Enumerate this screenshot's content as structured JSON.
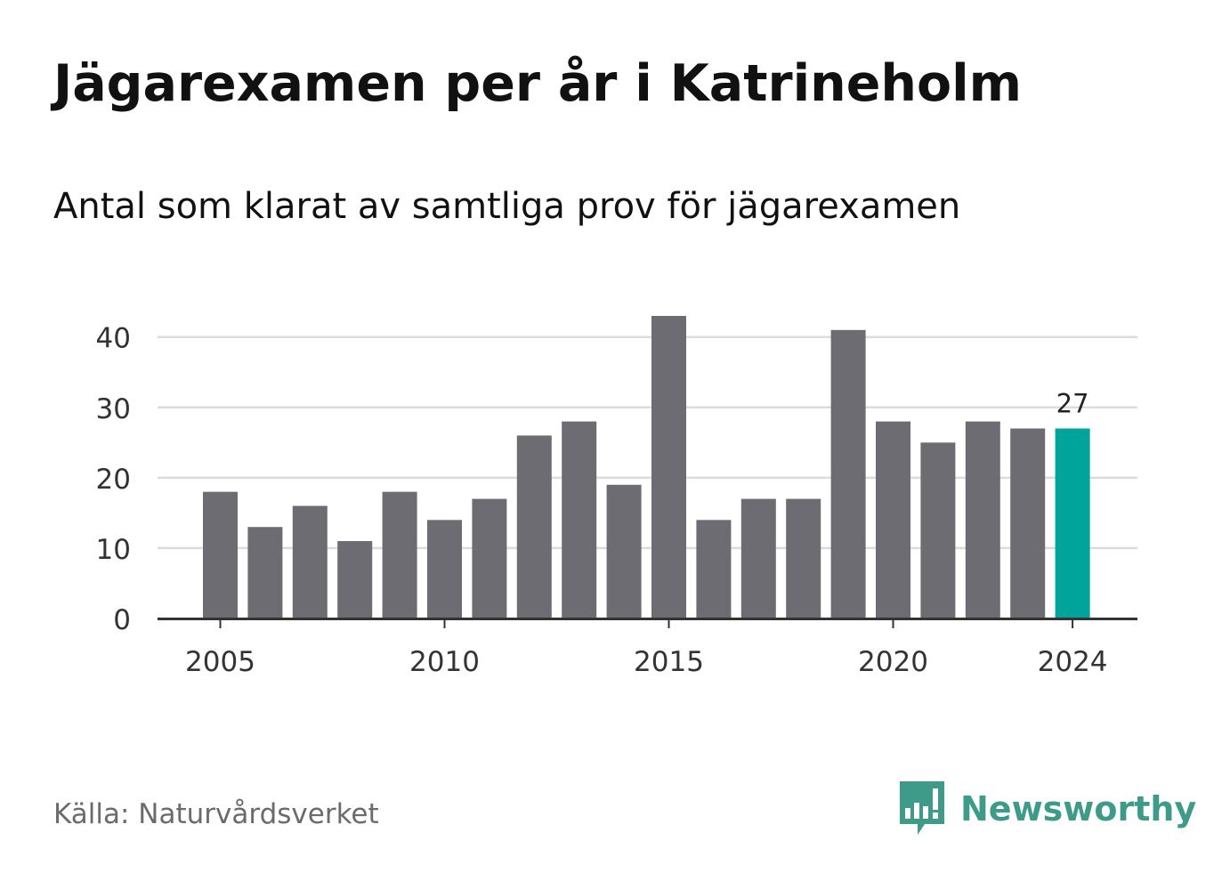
{
  "title": "Jägarexamen per år i Katrineholm",
  "subtitle": "Antal som klarat av samtliga prov för jägarexamen",
  "source": "Källa: Naturvårdsverket",
  "brand": {
    "name": "Newsworthy",
    "icon": "newsworthy-logo-icon",
    "color": "#3f9b89"
  },
  "colors": {
    "bar": "#6d6c72",
    "highlight": "#00a49a",
    "grid": "#dcdcdc",
    "axis": "#333333",
    "text": "#111111",
    "muted": "#6b6b6b"
  },
  "chart_data": {
    "type": "bar",
    "title": "Jägarexamen per år i Katrineholm",
    "subtitle": "Antal som klarat av samtliga prov för jägarexamen",
    "xlabel": "",
    "ylabel": "",
    "categories": [
      2005,
      2006,
      2007,
      2008,
      2009,
      2010,
      2011,
      2012,
      2013,
      2014,
      2015,
      2016,
      2017,
      2018,
      2019,
      2020,
      2021,
      2022,
      2023,
      2024
    ],
    "values": [
      18,
      13,
      16,
      11,
      18,
      14,
      17,
      26,
      28,
      19,
      43,
      14,
      17,
      17,
      41,
      28,
      25,
      28,
      27,
      27
    ],
    "ylim": [
      0,
      43
    ],
    "yticks": [
      0,
      10,
      20,
      30,
      40
    ],
    "xticks": [
      2005,
      2010,
      2015,
      2020,
      2024
    ],
    "highlight_category": 2024,
    "data_labels": [
      {
        "category": 2024,
        "text": "27"
      }
    ],
    "grid": true,
    "legend": "none"
  }
}
